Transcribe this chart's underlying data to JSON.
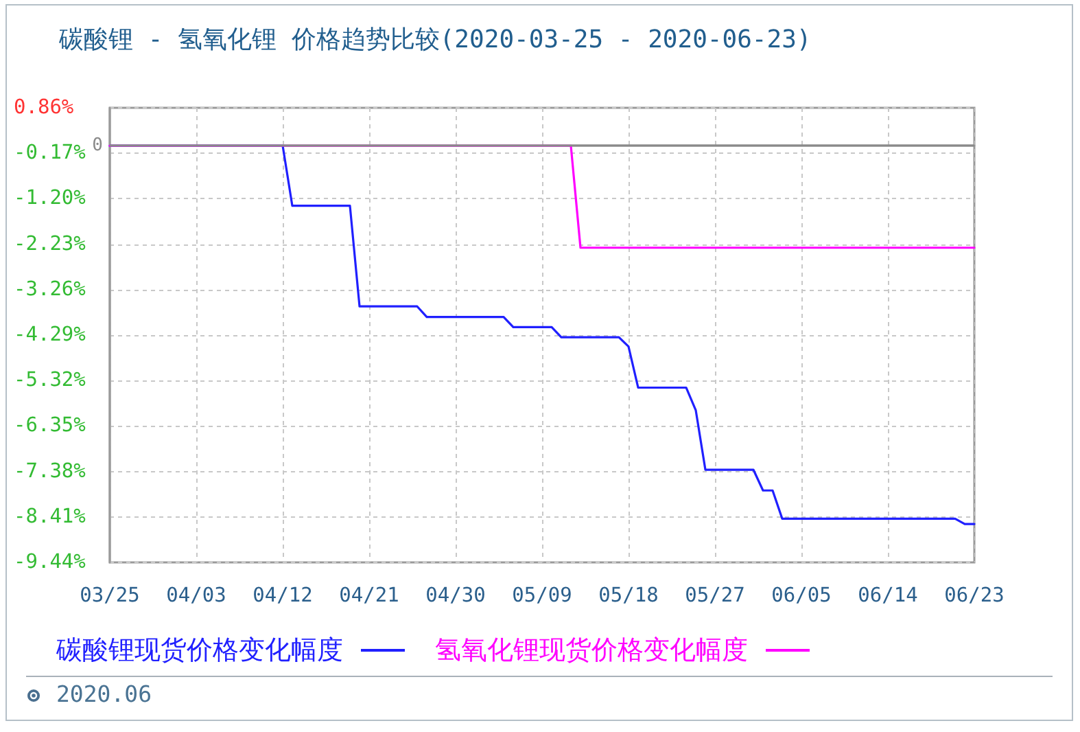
{
  "chart_data": {
    "type": "line",
    "title": "碳酸锂 - 氢氧化锂 价格趋势比较(2020-03-25 - 2020-06-23)",
    "annotations": [
      "2020.06"
    ],
    "xlim": [
      "2020-03-25",
      "2020-06-23"
    ],
    "xticks": [
      {
        "value": "2020-03-25",
        "label": "03/25"
      },
      {
        "value": "2020-04-03",
        "label": "04/03"
      },
      {
        "value": "2020-04-12",
        "label": "04/12"
      },
      {
        "value": "2020-04-21",
        "label": "04/21"
      },
      {
        "value": "2020-04-30",
        "label": "04/30"
      },
      {
        "value": "2020-05-09",
        "label": "05/09"
      },
      {
        "value": "2020-05-18",
        "label": "05/18"
      },
      {
        "value": "2020-05-27",
        "label": "05/27"
      },
      {
        "value": "2020-06-05",
        "label": "06/05"
      },
      {
        "value": "2020-06-14",
        "label": "06/14"
      },
      {
        "value": "2020-06-23",
        "label": "06/23"
      }
    ],
    "ylim": [
      -9.44,
      0.86
    ],
    "yticks": [
      {
        "value": -9.44,
        "label": "-9.44%"
      },
      {
        "value": -8.41,
        "label": "-8.41%"
      },
      {
        "value": -7.38,
        "label": "-7.38%"
      },
      {
        "value": -6.35,
        "label": "-6.35%"
      },
      {
        "value": -5.32,
        "label": "-5.32%"
      },
      {
        "value": -4.29,
        "label": "-4.29%"
      },
      {
        "value": -3.26,
        "label": "-3.26%"
      },
      {
        "value": -2.23,
        "label": "-2.23%"
      },
      {
        "value": -1.2,
        "label": "-1.20%"
      },
      {
        "value": -0.17,
        "label": "-0.17%"
      },
      {
        "value": 0.86,
        "label": "0.86%"
      }
    ],
    "grid": true,
    "legend": "bottom",
    "marker": "none",
    "line_style": "solid",
    "ref_lines": [
      {
        "axis": "y",
        "value": 0,
        "label": "0",
        "color": "#8a8a8a"
      }
    ],
    "series": [
      {
        "name": "碳酸锂现货价格变化幅度",
        "color": "#2020ff",
        "x": [
          "2020-03-25",
          "2020-04-12",
          "2020-04-13",
          "2020-04-19",
          "2020-04-20",
          "2020-04-26",
          "2020-04-27",
          "2020-05-05",
          "2020-05-06",
          "2020-05-10",
          "2020-05-11",
          "2020-05-17",
          "2020-05-18",
          "2020-05-19",
          "2020-05-24",
          "2020-05-25",
          "2020-05-26",
          "2020-05-31",
          "2020-06-01",
          "2020-06-02",
          "2020-06-03",
          "2020-06-21",
          "2020-06-22",
          "2020-06-23"
        ],
        "values": [
          0,
          0,
          -1.36,
          -1.36,
          -3.64,
          -3.64,
          -3.88,
          -3.88,
          -4.11,
          -4.11,
          -4.34,
          -4.34,
          -4.55,
          -5.48,
          -5.48,
          -5.99,
          -7.34,
          -7.34,
          -7.81,
          -7.81,
          -8.45,
          -8.45,
          -8.57,
          -8.57
        ]
      },
      {
        "name": "氢氧化锂现货价格变化幅度",
        "color": "#ff00ff",
        "x": [
          "2020-03-25",
          "2020-05-12",
          "2020-05-13",
          "2020-06-23"
        ],
        "values": [
          0,
          0,
          -2.31,
          -2.31
        ]
      }
    ]
  }
}
